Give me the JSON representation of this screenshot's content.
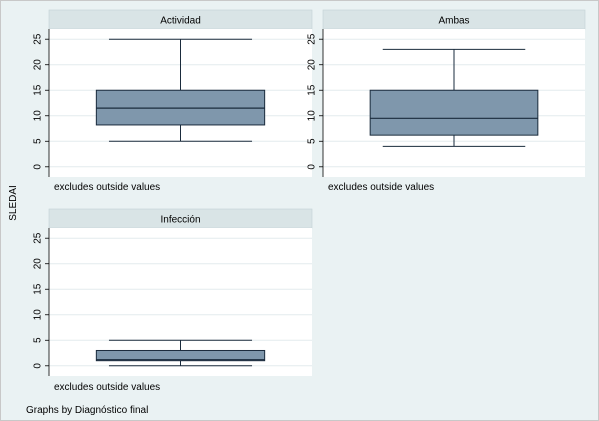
{
  "chart_data": {
    "type": "box",
    "ylabel": "SLEDAI",
    "note": "Graphs by Diagnóstico final",
    "yticks": [
      0,
      5,
      10,
      15,
      20,
      25
    ],
    "ylim": [
      -2,
      27
    ],
    "colors": {
      "box_fill": "#7f97ac",
      "box_stroke": "#1a2b3c",
      "panel_bg": "#ffffff",
      "title_bg": "#d9e4e6",
      "outer_bg": "#eaf2f3",
      "grid": "#e3ecee"
    },
    "panels": [
      {
        "title": "Actividad",
        "subnote": "excludes outside values",
        "whisker_low": 5,
        "q1": 8.2,
        "median": 11.5,
        "q3": 15,
        "whisker_high": 25
      },
      {
        "title": "Ambas",
        "subnote": "excludes outside values",
        "whisker_low": 4,
        "q1": 6.2,
        "median": 9.5,
        "q3": 15,
        "whisker_high": 23
      },
      {
        "title": "Infección",
        "subnote": "excludes outside values",
        "whisker_low": 0,
        "q1": 1,
        "median": 1.2,
        "q3": 3,
        "whisker_high": 5
      }
    ]
  }
}
